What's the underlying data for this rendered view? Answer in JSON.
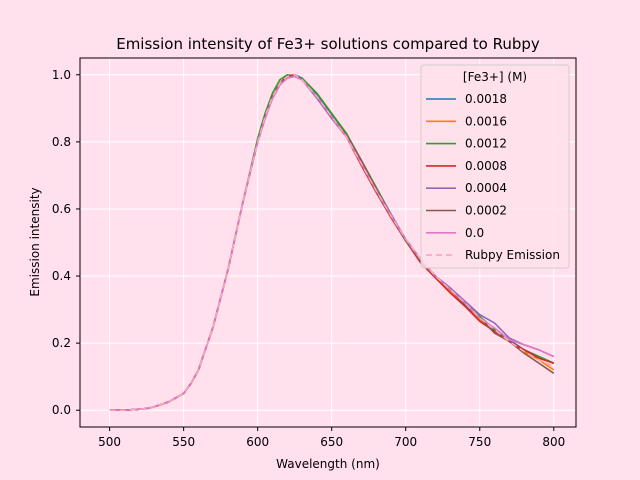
{
  "chart_data": {
    "type": "line",
    "title": "Emission intensity of Fe3+ solutions compared to Rubpy",
    "xlabel": "Wavelength (nm)",
    "ylabel": "Emission intensity",
    "xlim": [
      480,
      815
    ],
    "ylim": [
      -0.05,
      1.05
    ],
    "xticks": [
      500,
      550,
      600,
      650,
      700,
      750,
      800
    ],
    "yticks": [
      0.0,
      0.2,
      0.4,
      0.6,
      0.8,
      1.0
    ],
    "xtick_labels": [
      "500",
      "550",
      "600",
      "650",
      "700",
      "750",
      "800"
    ],
    "ytick_labels": [
      "0.0",
      "0.2",
      "0.4",
      "0.6",
      "0.8",
      "1.0"
    ],
    "grid": true,
    "legend": {
      "title": "[Fe3+] (M)",
      "placement": "top-right"
    },
    "x": [
      500,
      510,
      520,
      525,
      530,
      540,
      550,
      555,
      560,
      570,
      580,
      590,
      600,
      605,
      610,
      615,
      620,
      625,
      630,
      640,
      650,
      660,
      670,
      680,
      690,
      700,
      710,
      720,
      730,
      740,
      750,
      760,
      770,
      780,
      790,
      800
    ],
    "series": [
      {
        "name": "0.0018",
        "color": "#1f77b4",
        "dash": "",
        "values": [
          0.0,
          0.0,
          0.003,
          0.005,
          0.01,
          0.025,
          0.05,
          0.08,
          0.12,
          0.25,
          0.42,
          0.62,
          0.8,
          0.87,
          0.93,
          0.97,
          0.995,
          1.0,
          0.99,
          0.94,
          0.88,
          0.82,
          0.74,
          0.66,
          0.58,
          0.51,
          0.45,
          0.4,
          0.36,
          0.32,
          0.27,
          0.24,
          0.21,
          0.18,
          0.16,
          0.14
        ]
      },
      {
        "name": "0.0016",
        "color": "#ff7f0e",
        "dash": "",
        "values": [
          0.0,
          0.0,
          0.003,
          0.005,
          0.01,
          0.025,
          0.05,
          0.08,
          0.12,
          0.25,
          0.42,
          0.62,
          0.8,
          0.875,
          0.935,
          0.975,
          0.998,
          1.0,
          0.985,
          0.935,
          0.875,
          0.815,
          0.735,
          0.655,
          0.575,
          0.505,
          0.445,
          0.395,
          0.355,
          0.315,
          0.27,
          0.235,
          0.205,
          0.175,
          0.15,
          0.12
        ]
      },
      {
        "name": "0.0012",
        "color": "#2ca02c",
        "dash": "",
        "values": [
          0.0,
          0.0,
          0.003,
          0.005,
          0.01,
          0.025,
          0.05,
          0.08,
          0.12,
          0.25,
          0.42,
          0.62,
          0.81,
          0.885,
          0.945,
          0.985,
          1.0,
          0.995,
          0.99,
          0.945,
          0.885,
          0.825,
          0.745,
          0.665,
          0.585,
          0.505,
          0.45,
          0.4,
          0.36,
          0.32,
          0.28,
          0.24,
          0.205,
          0.18,
          0.16,
          0.14
        ]
      },
      {
        "name": "0.0008",
        "color": "#d62728",
        "dash": "",
        "values": [
          0.0,
          0.0,
          0.003,
          0.005,
          0.01,
          0.025,
          0.05,
          0.08,
          0.12,
          0.25,
          0.42,
          0.62,
          0.8,
          0.875,
          0.935,
          0.975,
          0.995,
          1.0,
          0.985,
          0.935,
          0.87,
          0.815,
          0.73,
          0.65,
          0.575,
          0.505,
          0.44,
          0.395,
          0.35,
          0.31,
          0.265,
          0.235,
          0.205,
          0.18,
          0.155,
          0.14
        ]
      },
      {
        "name": "0.0004",
        "color": "#9467bd",
        "dash": "",
        "values": [
          0.0,
          0.0,
          0.003,
          0.005,
          0.01,
          0.025,
          0.05,
          0.08,
          0.12,
          0.25,
          0.42,
          0.62,
          0.8,
          0.87,
          0.93,
          0.97,
          0.99,
          0.995,
          0.985,
          0.93,
          0.87,
          0.815,
          0.74,
          0.66,
          0.585,
          0.51,
          0.45,
          0.4,
          0.365,
          0.325,
          0.285,
          0.26,
          0.215,
          0.195,
          0.18,
          0.16
        ]
      },
      {
        "name": "0.0002",
        "color": "#8c564b",
        "dash": "",
        "values": [
          0.0,
          0.0,
          0.003,
          0.005,
          0.01,
          0.025,
          0.05,
          0.08,
          0.12,
          0.25,
          0.42,
          0.62,
          0.8,
          0.875,
          0.935,
          0.975,
          0.99,
          1.0,
          0.985,
          0.935,
          0.875,
          0.82,
          0.745,
          0.66,
          0.58,
          0.505,
          0.445,
          0.4,
          0.36,
          0.315,
          0.275,
          0.23,
          0.205,
          0.17,
          0.14,
          0.11
        ]
      },
      {
        "name": "0.0",
        "color": "#e377c2",
        "dash": "",
        "values": [
          0.0,
          0.0,
          0.003,
          0.005,
          0.01,
          0.025,
          0.05,
          0.08,
          0.12,
          0.25,
          0.42,
          0.62,
          0.8,
          0.87,
          0.93,
          0.97,
          0.99,
          0.995,
          0.985,
          0.935,
          0.875,
          0.815,
          0.735,
          0.655,
          0.58,
          0.51,
          0.45,
          0.4,
          0.36,
          0.32,
          0.275,
          0.245,
          0.21,
          0.195,
          0.18,
          0.16
        ]
      },
      {
        "name": "Rubpy Emission",
        "color": "#f7a6c0",
        "dash": "6,4",
        "values": [
          0.0,
          0.0,
          0.003,
          0.005,
          0.01,
          0.025,
          0.05,
          0.08,
          0.12,
          0.25,
          0.42,
          0.62,
          0.8,
          0.875,
          0.935,
          0.975,
          0.995,
          1.0,
          0.985,
          0.935,
          0.875,
          0.815,
          0.735,
          0.655,
          0.58,
          0.51,
          0.45,
          0.4,
          0.36,
          0.32,
          0.275,
          0.24,
          0.205,
          0.175,
          0.15,
          0.13
        ]
      }
    ]
  }
}
